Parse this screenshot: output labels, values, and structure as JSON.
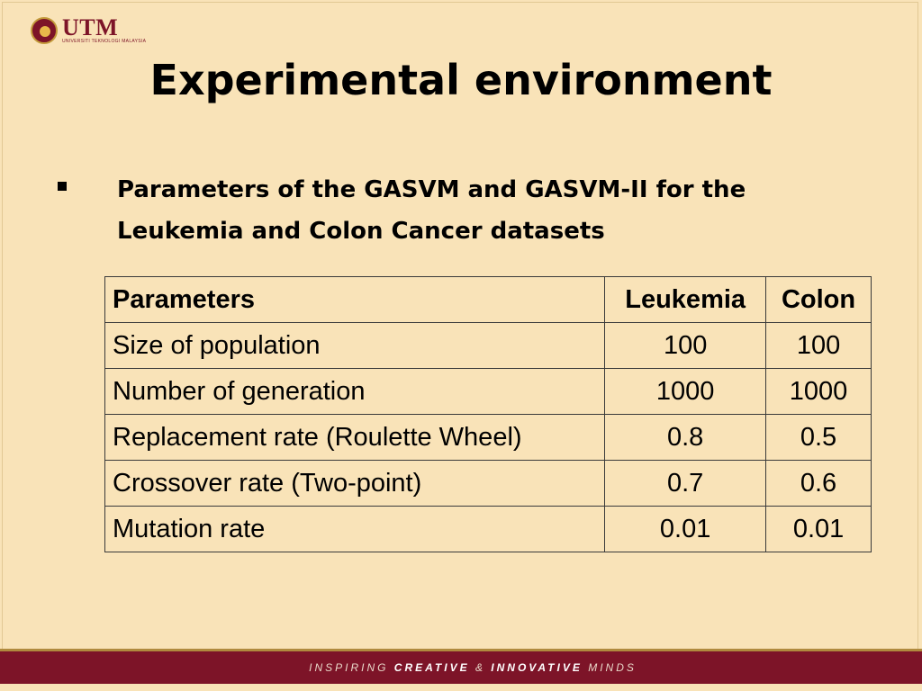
{
  "logo": {
    "text": "UTM",
    "subtext": "UNIVERSITI TEKNOLOGI MALAYSIA"
  },
  "title": "Experimental environment",
  "bullet": {
    "text": "Parameters of the GASVM and GASVM-II for the Leukemia and Colon Cancer datasets"
  },
  "table": {
    "headers": [
      "Parameters",
      "Leukemia",
      "Colon"
    ],
    "rows": [
      [
        "Size of population",
        "100",
        "100"
      ],
      [
        "Number of generation",
        "1000",
        "1000"
      ],
      [
        "Replacement rate (Roulette Wheel)",
        "0.8",
        "0.5"
      ],
      [
        "Crossover rate (Two-point)",
        "0.7",
        "0.6"
      ],
      [
        "Mutation rate",
        "0.01",
        "0.01"
      ]
    ]
  },
  "footer": {
    "part1": "INSPIRING",
    "part2": "CREATIVE",
    "part3": "&",
    "part4": "INNOVATIVE",
    "part5": "MINDS"
  },
  "colors": {
    "background": "#f9e3b8",
    "brand_maroon": "#7d1428",
    "gold": "#b08a3e"
  }
}
